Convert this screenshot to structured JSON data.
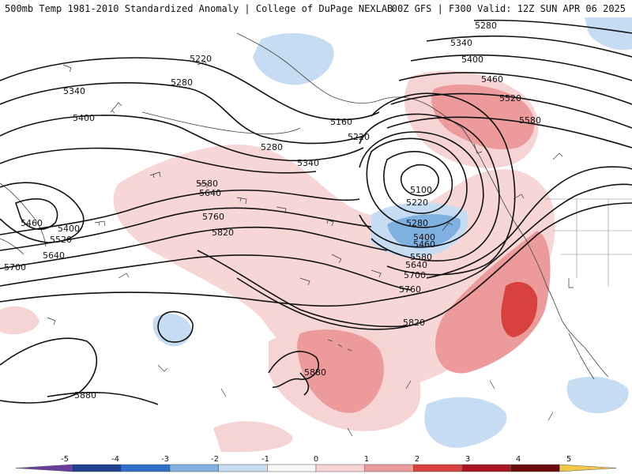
{
  "header": {
    "left_title": "500mb Temp 1981-2010 Standardized Anomaly | College of DuPage NEXLAB",
    "right_title": "00Z GFS | F300 Valid: 12Z SUN APR 06 2025"
  },
  "colorbar": {
    "labels": [
      "-5",
      "-4",
      "-3",
      "-2",
      "-1",
      "0",
      "1",
      "2",
      "3",
      "4",
      "5"
    ],
    "colors": [
      "#6a3d9a",
      "#1f3f8f",
      "#2e6fc7",
      "#7fb0e0",
      "#c6dcf2",
      "#f7f7f7",
      "#f7d4d4",
      "#ec9a9a",
      "#d94141",
      "#a81420",
      "#6b0a0a",
      "#f2c84b"
    ]
  },
  "map": {
    "contour_labels": [
      "5280",
      "5340",
      "5400",
      "5460",
      "5520",
      "5580",
      "5220",
      "5280",
      "5340",
      "5400",
      "5160",
      "5220",
      "5280",
      "5340",
      "5580",
      "5640",
      "5760",
      "5820",
      "5460",
      "5400",
      "5520",
      "5640",
      "5700",
      "5100",
      "5220",
      "5280",
      "5400",
      "5460",
      "5580",
      "5640",
      "5700",
      "5760",
      "5820",
      "5880",
      "5880"
    ]
  }
}
